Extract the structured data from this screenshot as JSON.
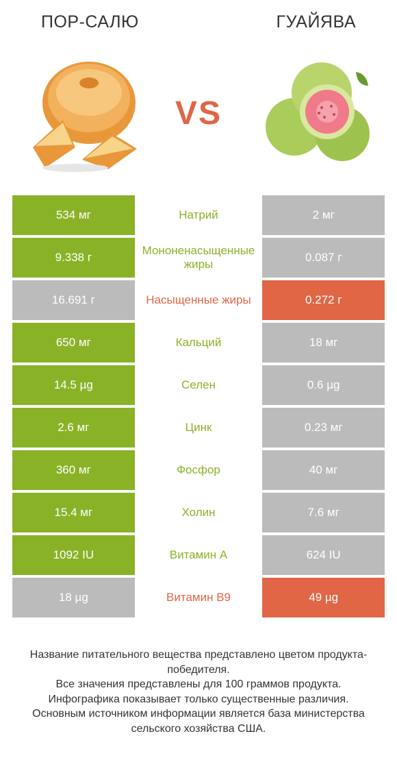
{
  "colors": {
    "green": "#8ab227",
    "orange": "#e06646",
    "green_text": "#8ab227",
    "orange_text": "#e06646",
    "inactive": "#bbbbbb",
    "white": "#ffffff"
  },
  "header": {
    "left": "ПОР-САЛЮ",
    "right": "ГУАЙЯВА",
    "vs": "VS"
  },
  "rows": [
    {
      "left": "534 мг",
      "mid": "Натрий",
      "right": "2 мг",
      "winner": "left"
    },
    {
      "left": "9.338 г",
      "mid": "Мононенасыщенные жиры",
      "right": "0.087 г",
      "winner": "left"
    },
    {
      "left": "16.691 г",
      "mid": "Насыщенные жиры",
      "right": "0.272 г",
      "winner": "right"
    },
    {
      "left": "650 мг",
      "mid": "Кальций",
      "right": "18 мг",
      "winner": "left"
    },
    {
      "left": "14.5 µg",
      "mid": "Селен",
      "right": "0.6 µg",
      "winner": "left"
    },
    {
      "left": "2.6 мг",
      "mid": "Цинк",
      "right": "0.23 мг",
      "winner": "left"
    },
    {
      "left": "360 мг",
      "mid": "Фосфор",
      "right": "40 мг",
      "winner": "left"
    },
    {
      "left": "15.4 мг",
      "mid": "Холин",
      "right": "7.6 мг",
      "winner": "left"
    },
    {
      "left": "1092 IU",
      "mid": "Витамин A",
      "right": "624 IU",
      "winner": "left"
    },
    {
      "left": "18 µg",
      "mid": "Витамин B9",
      "right": "49 µg",
      "winner": "right"
    }
  ],
  "footer": "Название питательного вещества представлено цветом продукта-победителя.\nВсе значения представлены для 100 граммов продукта.\nИнфографика показывает только существенные различия.\nОсновным источником информации является база министерства сельского хозяйства США."
}
